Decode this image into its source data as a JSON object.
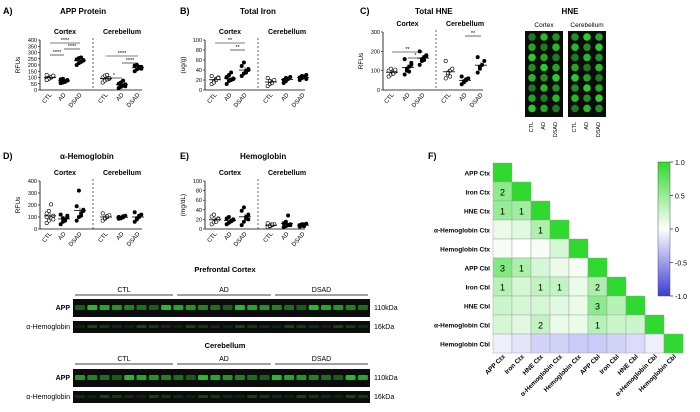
{
  "colors": {
    "green": "#35d435",
    "blot_bg": "#0c0c0c",
    "band": "#28c428",
    "hne_dot": "#2ed62e",
    "neg": "#9e9ee8",
    "pos_strong": "#2fd92f",
    "pos_light": "#d8f5d8"
  },
  "panels": [
    {
      "key": "A",
      "letter": "A)",
      "title": "APP Protein",
      "ylabel": "RFUs",
      "yticks": [
        "0",
        "50",
        "100",
        "150",
        "200",
        "250",
        "300",
        "350",
        "400"
      ],
      "regions": [
        "Cortex",
        "Cerebellum"
      ],
      "xlabels": [
        "CTL",
        "AD",
        "DSAD",
        "CTL",
        "AD",
        "DSAD"
      ],
      "significance": [
        "****",
        "****",
        "****",
        "*",
        "****",
        "****"
      ]
    },
    {
      "key": "B",
      "letter": "B)",
      "title": "Total Iron",
      "ylabel": "(ug/g)",
      "yticks": [
        "0",
        "20",
        "40",
        "60",
        "80",
        "100"
      ],
      "regions": [
        "Cortex",
        "Cerebellum"
      ],
      "xlabels": [
        "CTL",
        "AD",
        "DSAD",
        "CTL",
        "AD",
        "DSAD"
      ],
      "significance": [
        "**",
        "**"
      ]
    },
    {
      "key": "C",
      "letter": "C)",
      "title": "Total HNE",
      "ylabel": "RFUs",
      "yticks": [
        "0",
        "100",
        "200",
        "300"
      ],
      "regions": [
        "Cortex",
        "Cerebellum"
      ],
      "xlabels": [
        "CTL",
        "AD",
        "DSAD",
        "CTL",
        "AD",
        "DSAD"
      ],
      "significance": [
        "**",
        "*",
        "**"
      ]
    },
    {
      "key": "D",
      "letter": "D)",
      "title": "α-Hemoglobin",
      "ylabel": "RFUs",
      "yticks": [
        "0",
        "100",
        "200",
        "300",
        "400"
      ],
      "regions": [
        "Cortex",
        "Cerebellum"
      ],
      "xlabels": [
        "CTL",
        "AD",
        "DSAD",
        "CTL",
        "AD",
        "DSAD"
      ],
      "significance": []
    },
    {
      "key": "E",
      "letter": "E)",
      "title": "Hemoglobin",
      "ylabel": "(mg/dL)",
      "yticks": [
        "0",
        "20",
        "40",
        "60",
        "80",
        "100"
      ],
      "regions": [
        "Cortex",
        "Cerebellum"
      ],
      "xlabels": [
        "CTL",
        "AD",
        "DSAD",
        "CTL",
        "AD",
        "DSAD"
      ],
      "significance": []
    }
  ],
  "hne_image": {
    "title": "HNE",
    "regions": [
      "Cortex",
      "Cerebellum"
    ],
    "xlabels": [
      "CTL",
      "AD",
      "DSAD"
    ]
  },
  "blots": {
    "groups": [
      "CTL",
      "AD",
      "DSAD"
    ],
    "sections": [
      {
        "title": "Prefrontal Cortex",
        "rows": [
          {
            "label": "APP",
            "size": "110kDa"
          },
          {
            "label": "α-Hemoglobin",
            "size": "16kDa"
          }
        ]
      },
      {
        "title": "Cerebellum",
        "rows": [
          {
            "label": "APP",
            "size": "110kDa"
          },
          {
            "label": "α-Hemoglobin",
            "size": "16kDa"
          }
        ]
      }
    ]
  },
  "heatmap": {
    "letter": "F)",
    "labels": [
      "APP Ctx",
      "Iron Ctx",
      "HNE Ctx",
      "α-Hemoglobin Ctx",
      "Hemoglobin Ctx",
      "APP Cbl",
      "Iron Cbl",
      "HNE Cbl",
      "α-Hemoglobin Cbl",
      "Hemoglobin Cbl"
    ],
    "colorbar_ticks": [
      "1.0",
      "0.5",
      "0",
      "-0.5",
      "-1.0"
    ],
    "annotations": [
      {
        "row": 1,
        "col": 0,
        "text": "2"
      },
      {
        "row": 2,
        "col": 0,
        "text": "1"
      },
      {
        "row": 2,
        "col": 1,
        "text": "1"
      },
      {
        "row": 3,
        "col": 2,
        "text": "1"
      },
      {
        "row": 5,
        "col": 0,
        "text": "3"
      },
      {
        "row": 5,
        "col": 1,
        "text": "1"
      },
      {
        "row": 6,
        "col": 0,
        "text": "1"
      },
      {
        "row": 6,
        "col": 2,
        "text": "1"
      },
      {
        "row": 6,
        "col": 3,
        "text": "1"
      },
      {
        "row": 6,
        "col": 5,
        "text": "2"
      },
      {
        "row": 7,
        "col": 5,
        "text": "3"
      },
      {
        "row": 8,
        "col": 2,
        "text": "2"
      },
      {
        "row": 8,
        "col": 5,
        "text": "1"
      }
    ]
  },
  "chart_data": [
    {
      "type": "scatter",
      "title": "APP Protein",
      "ylabel": "RFUs",
      "ylim": [
        0,
        400
      ],
      "groups": [
        "CTL",
        "AD",
        "DSAD",
        "CTL",
        "AD",
        "DSAD"
      ],
      "values": [
        [
          85,
          95,
          100,
          110,
          120,
          90,
          105,
          115,
          80
        ],
        [
          55,
          60,
          70,
          80,
          85,
          90,
          65,
          75
        ],
        [
          200,
          215,
          225,
          235,
          245,
          255,
          260,
          240
        ],
        [
          60,
          75,
          85,
          90,
          100,
          115,
          120,
          95
        ],
        [
          15,
          25,
          35,
          45,
          50,
          60,
          75,
          30
        ],
        [
          150,
          165,
          175,
          185,
          195,
          200,
          185,
          170
        ]
      ]
    },
    {
      "type": "scatter",
      "title": "Total Iron",
      "ylabel": "(ug/g)",
      "ylim": [
        0,
        100
      ],
      "groups": [
        "CTL",
        "AD",
        "DSAD",
        "CTL",
        "AD",
        "DSAD"
      ],
      "values": [
        [
          12,
          18,
          22,
          25,
          28,
          15,
          20,
          24
        ],
        [
          12,
          18,
          20,
          23,
          26,
          30,
          35,
          22,
          25
        ],
        [
          28,
          33,
          38,
          42,
          48,
          55,
          35,
          40
        ],
        [
          8,
          12,
          16,
          20,
          24,
          18,
          14
        ],
        [
          14,
          18,
          22,
          26,
          20,
          24,
          23
        ],
        [
          20,
          24,
          27,
          30,
          25,
          28,
          26,
          22
        ]
      ]
    },
    {
      "type": "scatter",
      "title": "Total HNE",
      "ylabel": "RFUs",
      "ylim": [
        0,
        300
      ],
      "groups": [
        "CTL",
        "AD",
        "DSAD",
        "CTL",
        "AD",
        "DSAD"
      ],
      "values": [
        [
          70,
          80,
          90,
          95,
          100,
          110,
          85,
          105
        ],
        [
          80,
          100,
          120,
          130,
          160,
          110,
          95,
          140
        ],
        [
          130,
          150,
          170,
          180,
          200,
          160,
          155,
          175
        ],
        [
          60,
          80,
          100,
          110,
          150,
          90,
          70
        ],
        [
          30,
          40,
          50,
          60,
          70,
          45,
          55
        ],
        [
          90,
          110,
          130,
          150,
          170,
          120
        ]
      ]
    },
    {
      "type": "scatter",
      "title": "α-Hemoglobin",
      "ylabel": "RFUs",
      "ylim": [
        0,
        400
      ],
      "groups": [
        "CTL",
        "AD",
        "DSAD",
        "CTL",
        "AD",
        "DSAD"
      ],
      "values": [
        [
          50,
          70,
          90,
          110,
          130,
          150,
          205,
          80,
          100
        ],
        [
          40,
          60,
          80,
          100,
          120,
          90,
          70,
          110
        ],
        [
          70,
          100,
          130,
          160,
          190,
          320,
          110,
          150
        ],
        [
          70,
          85,
          100,
          115,
          130,
          95,
          105
        ],
        [
          85,
          95,
          105,
          110,
          100,
          90,
          98
        ],
        [
          60,
          80,
          100,
          120,
          140,
          90,
          110
        ]
      ]
    },
    {
      "type": "scatter",
      "title": "Hemoglobin",
      "ylabel": "(mg/dL)",
      "ylim": [
        0,
        100
      ],
      "groups": [
        "CTL",
        "AD",
        "DSAD",
        "CTL",
        "AD",
        "DSAD"
      ],
      "values": [
        [
          10,
          14,
          18,
          22,
          26,
          30,
          15,
          20
        ],
        [
          10,
          13,
          16,
          19,
          22,
          25,
          17,
          20
        ],
        [
          8,
          15,
          22,
          30,
          38,
          45,
          25,
          20
        ],
        [
          4,
          6,
          8,
          10,
          12,
          7,
          9
        ],
        [
          4,
          6,
          8,
          10,
          12,
          15,
          28,
          8
        ],
        [
          5,
          7,
          9,
          11,
          8,
          10,
          6
        ]
      ]
    },
    {
      "type": "heatmap",
      "title": "",
      "labels": [
        "APP Ctx",
        "Iron Ctx",
        "HNE Ctx",
        "α-Hemoglobin Ctx",
        "Hemoglobin Ctx",
        "APP Cbl",
        "Iron Cbl",
        "HNE Cbl",
        "α-Hemoglobin Cbl",
        "Hemoglobin Cbl"
      ],
      "colorbar_range": [
        -1.0,
        1.0
      ],
      "values": [
        [
          1.0
        ],
        [
          0.55,
          1.0
        ],
        [
          0.5,
          0.45,
          1.0
        ],
        [
          0.1,
          0.15,
          0.4,
          1.0
        ],
        [
          0.05,
          0.0,
          0.05,
          0.2,
          1.0
        ],
        [
          0.6,
          0.4,
          0.2,
          0.1,
          0.05,
          1.0
        ],
        [
          0.35,
          0.2,
          0.3,
          0.3,
          0.1,
          0.4,
          1.0
        ],
        [
          0.25,
          0.2,
          0.2,
          0.15,
          0.1,
          0.55,
          0.35,
          1.0
        ],
        [
          0.2,
          0.15,
          0.3,
          0.1,
          0.1,
          0.35,
          0.25,
          0.25,
          1.0
        ],
        [
          -0.1,
          -0.15,
          -0.25,
          -0.25,
          -0.3,
          -0.3,
          -0.25,
          -0.2,
          -0.1,
          1.0
        ]
      ]
    }
  ]
}
